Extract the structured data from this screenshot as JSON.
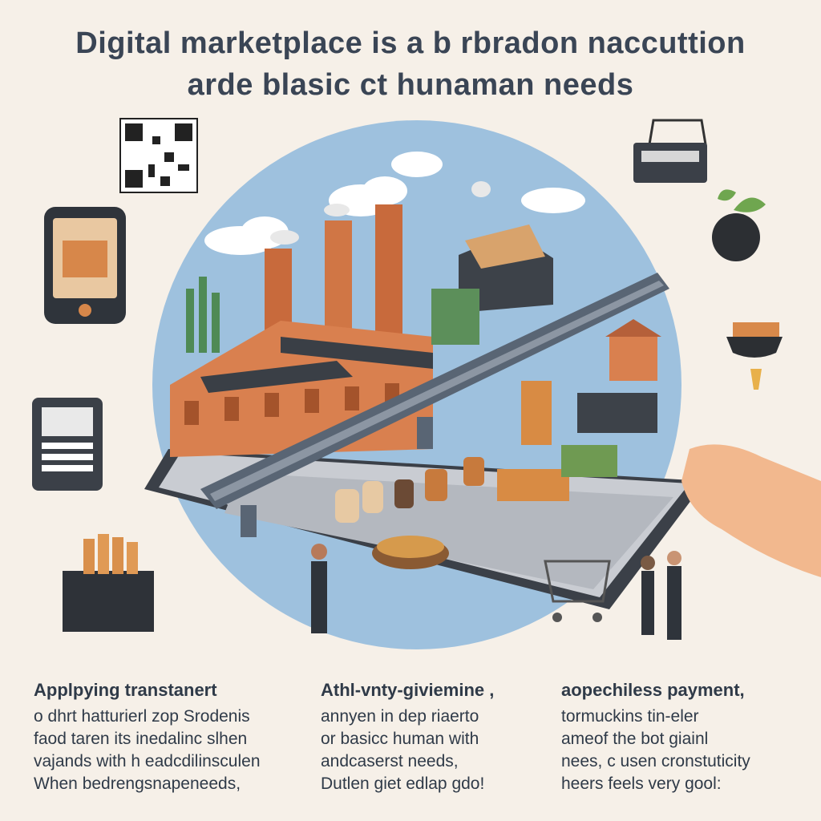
{
  "title": {
    "line1": "Digital marketplace is a b rbradon naccuttion",
    "line2": "arde blasic ct hunaman needs"
  },
  "icons": [
    "qr-code-icon",
    "shopping-basket-icon",
    "apple-icon",
    "smartphone-icon",
    "pos-terminal-icon",
    "bowl-icon",
    "produce-crate-icon",
    "shopping-cart-icon"
  ],
  "colors": {
    "background": "#f6f0e8",
    "sky": "#9ec1de",
    "brick": "#d9804f",
    "tablet": "#3b4048",
    "text": "#2f3a48"
  },
  "columns": [
    {
      "heading": "Applpying transtanert",
      "lines": [
        "o dhrt hatturierl zop Srodenis",
        "faod taren its inedalinc slhen",
        "vajands with h eadcdilinsculen",
        "When bedrengsnapeneeds,"
      ]
    },
    {
      "heading": "Athl-vnty-giviemine ,",
      "lines": [
        "annyen in dep riaerto",
        "or basicc human with",
        "andcaserst needs,",
        "Dutlen giet edlap gdo!"
      ]
    },
    {
      "heading": "aopechiless payment,",
      "lines": [
        "tormuckins tin-eler",
        "ameof the bot giainl",
        "nees, c usen cronstuticity",
        "heers feels very gool:"
      ]
    }
  ]
}
